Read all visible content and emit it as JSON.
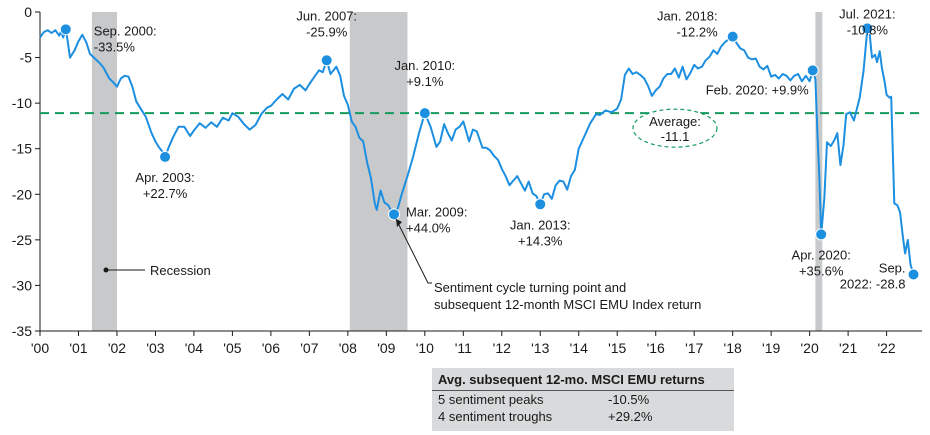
{
  "chart_data": {
    "type": "line",
    "colors": {
      "line": "#1d8fe1",
      "average": "#159a5e",
      "recession": "#c8c9cb",
      "axis": "#1a1a1a",
      "stats_bg": "#d9dadb"
    },
    "ylim": [
      -35,
      0
    ],
    "yticks": [
      0,
      -5,
      -10,
      -15,
      -20,
      -25,
      -30,
      -35
    ],
    "xlim": [
      2000,
      2022.92
    ],
    "xticks": [
      {
        "x": 2000,
        "label": "'00"
      },
      {
        "x": 2001,
        "label": "'01"
      },
      {
        "x": 2002,
        "label": "'02"
      },
      {
        "x": 2003,
        "label": "'03"
      },
      {
        "x": 2004,
        "label": "'04"
      },
      {
        "x": 2005,
        "label": "'05"
      },
      {
        "x": 2006,
        "label": "'06"
      },
      {
        "x": 2007,
        "label": "'07"
      },
      {
        "x": 2008,
        "label": "'08"
      },
      {
        "x": 2009,
        "label": "'09"
      },
      {
        "x": 2010,
        "label": "'10"
      },
      {
        "x": 2011,
        "label": "'11"
      },
      {
        "x": 2012,
        "label": "'12"
      },
      {
        "x": 2013,
        "label": "'13"
      },
      {
        "x": 2014,
        "label": "'14"
      },
      {
        "x": 2015,
        "label": "'15"
      },
      {
        "x": 2016,
        "label": "'16"
      },
      {
        "x": 2017,
        "label": "'17"
      },
      {
        "x": 2018,
        "label": "'18"
      },
      {
        "x": 2019,
        "label": "'19"
      },
      {
        "x": 2020,
        "label": "'20"
      },
      {
        "x": 2021,
        "label": "'21"
      },
      {
        "x": 2022,
        "label": "'22"
      }
    ],
    "average": {
      "value": -11.1,
      "label_line1": "Average:",
      "label_line2": "-11.1"
    },
    "recessions": [
      [
        2001.35,
        2002.0
      ],
      [
        2008.05,
        2009.55
      ],
      [
        2020.15,
        2020.33
      ]
    ],
    "recession_label": "Recession",
    "series": [
      {
        "points": [
          [
            2000.0,
            -2.8
          ],
          [
            2000.1,
            -2.2
          ],
          [
            2000.2,
            -2.0
          ],
          [
            2000.3,
            -2.3
          ],
          [
            2000.4,
            -2.0
          ],
          [
            2000.5,
            -2.6
          ],
          [
            2000.55,
            -2.1
          ],
          [
            2000.6,
            -2.8
          ],
          [
            2000.67,
            -1.9
          ],
          [
            2000.72,
            -3.2
          ],
          [
            2000.78,
            -5.0
          ],
          [
            2000.9,
            -4.2
          ],
          [
            2001.0,
            -3.2
          ],
          [
            2001.1,
            -2.5
          ],
          [
            2001.2,
            -3.3
          ],
          [
            2001.3,
            -4.6
          ],
          [
            2001.4,
            -5.0
          ],
          [
            2001.55,
            -5.6
          ],
          [
            2001.65,
            -6.1
          ],
          [
            2001.8,
            -7.3
          ],
          [
            2001.9,
            -7.7
          ],
          [
            2002.0,
            -8.2
          ],
          [
            2002.1,
            -7.3
          ],
          [
            2002.2,
            -7.0
          ],
          [
            2002.3,
            -7.1
          ],
          [
            2002.4,
            -8.2
          ],
          [
            2002.5,
            -9.8
          ],
          [
            2002.6,
            -10.5
          ],
          [
            2002.75,
            -11.5
          ],
          [
            2002.9,
            -13.3
          ],
          [
            2003.0,
            -14.2
          ],
          [
            2003.1,
            -14.9
          ],
          [
            2003.2,
            -15.4
          ],
          [
            2003.25,
            -15.9
          ],
          [
            2003.35,
            -14.8
          ],
          [
            2003.45,
            -13.8
          ],
          [
            2003.6,
            -12.6
          ],
          [
            2003.75,
            -12.6
          ],
          [
            2003.9,
            -13.6
          ],
          [
            2004.0,
            -13.0
          ],
          [
            2004.15,
            -12.2
          ],
          [
            2004.3,
            -12.7
          ],
          [
            2004.45,
            -12.1
          ],
          [
            2004.6,
            -12.6
          ],
          [
            2004.75,
            -11.6
          ],
          [
            2004.9,
            -11.9
          ],
          [
            2005.0,
            -11.1
          ],
          [
            2005.15,
            -11.5
          ],
          [
            2005.3,
            -12.3
          ],
          [
            2005.45,
            -12.9
          ],
          [
            2005.6,
            -12.4
          ],
          [
            2005.75,
            -11.2
          ],
          [
            2005.9,
            -10.5
          ],
          [
            2006.0,
            -10.3
          ],
          [
            2006.15,
            -9.6
          ],
          [
            2006.3,
            -9.0
          ],
          [
            2006.45,
            -9.6
          ],
          [
            2006.6,
            -8.4
          ],
          [
            2006.75,
            -8.0
          ],
          [
            2006.9,
            -8.6
          ],
          [
            2007.0,
            -7.9
          ],
          [
            2007.15,
            -7.0
          ],
          [
            2007.25,
            -6.4
          ],
          [
            2007.35,
            -6.6
          ],
          [
            2007.45,
            -5.3
          ],
          [
            2007.55,
            -6.8
          ],
          [
            2007.7,
            -6.0
          ],
          [
            2007.8,
            -7.0
          ],
          [
            2007.9,
            -9.2
          ],
          [
            2008.0,
            -10.2
          ],
          [
            2008.1,
            -12.0
          ],
          [
            2008.2,
            -12.6
          ],
          [
            2008.3,
            -13.8
          ],
          [
            2008.4,
            -14.2
          ],
          [
            2008.5,
            -16.5
          ],
          [
            2008.6,
            -18.2
          ],
          [
            2008.7,
            -21.0
          ],
          [
            2008.75,
            -21.7
          ],
          [
            2008.85,
            -19.6
          ],
          [
            2008.95,
            -20.9
          ],
          [
            2009.05,
            -21.2
          ],
          [
            2009.15,
            -22.0
          ],
          [
            2009.2,
            -22.2
          ],
          [
            2009.3,
            -21.5
          ],
          [
            2009.4,
            -20.0
          ],
          [
            2009.55,
            -18.0
          ],
          [
            2009.7,
            -15.8
          ],
          [
            2009.85,
            -13.3
          ],
          [
            2010.0,
            -11.1
          ],
          [
            2010.15,
            -12.6
          ],
          [
            2010.3,
            -14.8
          ],
          [
            2010.4,
            -14.2
          ],
          [
            2010.5,
            -12.3
          ],
          [
            2010.6,
            -13.3
          ],
          [
            2010.7,
            -14.1
          ],
          [
            2010.8,
            -12.9
          ],
          [
            2010.9,
            -12.6
          ],
          [
            2011.0,
            -12.0
          ],
          [
            2011.15,
            -14.2
          ],
          [
            2011.25,
            -12.9
          ],
          [
            2011.35,
            -13.1
          ],
          [
            2011.5,
            -14.9
          ],
          [
            2011.6,
            -14.9
          ],
          [
            2011.7,
            -15.2
          ],
          [
            2011.8,
            -15.8
          ],
          [
            2011.9,
            -16.2
          ],
          [
            2012.0,
            -17.2
          ],
          [
            2012.1,
            -18.0
          ],
          [
            2012.2,
            -19.0
          ],
          [
            2012.3,
            -18.5
          ],
          [
            2012.4,
            -18.0
          ],
          [
            2012.5,
            -18.8
          ],
          [
            2012.6,
            -19.6
          ],
          [
            2012.7,
            -18.6
          ],
          [
            2012.8,
            -19.9
          ],
          [
            2012.9,
            -20.2
          ],
          [
            2013.0,
            -21.1
          ],
          [
            2013.1,
            -20.0
          ],
          [
            2013.2,
            -19.9
          ],
          [
            2013.3,
            -20.5
          ],
          [
            2013.4,
            -19.0
          ],
          [
            2013.5,
            -18.5
          ],
          [
            2013.6,
            -18.6
          ],
          [
            2013.7,
            -19.5
          ],
          [
            2013.8,
            -18.0
          ],
          [
            2013.9,
            -17.3
          ],
          [
            2014.0,
            -15.0
          ],
          [
            2014.15,
            -13.6
          ],
          [
            2014.3,
            -12.2
          ],
          [
            2014.45,
            -11.2
          ],
          [
            2014.55,
            -11.3
          ],
          [
            2014.7,
            -10.8
          ],
          [
            2014.85,
            -11.0
          ],
          [
            2015.0,
            -10.6
          ],
          [
            2015.1,
            -9.6
          ],
          [
            2015.2,
            -6.9
          ],
          [
            2015.3,
            -6.2
          ],
          [
            2015.4,
            -6.8
          ],
          [
            2015.5,
            -6.6
          ],
          [
            2015.6,
            -6.9
          ],
          [
            2015.7,
            -7.3
          ],
          [
            2015.8,
            -8.1
          ],
          [
            2015.9,
            -9.2
          ],
          [
            2016.0,
            -8.6
          ],
          [
            2016.1,
            -8.2
          ],
          [
            2016.2,
            -7.3
          ],
          [
            2016.3,
            -6.8
          ],
          [
            2016.4,
            -6.8
          ],
          [
            2016.5,
            -6.2
          ],
          [
            2016.6,
            -7.2
          ],
          [
            2016.7,
            -6.0
          ],
          [
            2016.8,
            -7.4
          ],
          [
            2016.9,
            -6.7
          ],
          [
            2017.0,
            -5.8
          ],
          [
            2017.1,
            -6.2
          ],
          [
            2017.2,
            -6.0
          ],
          [
            2017.3,
            -5.3
          ],
          [
            2017.4,
            -4.9
          ],
          [
            2017.5,
            -4.2
          ],
          [
            2017.6,
            -4.6
          ],
          [
            2017.7,
            -3.8
          ],
          [
            2017.8,
            -3.3
          ],
          [
            2017.9,
            -3.0
          ],
          [
            2018.0,
            -2.7
          ],
          [
            2018.1,
            -3.4
          ],
          [
            2018.2,
            -4.0
          ],
          [
            2018.3,
            -4.2
          ],
          [
            2018.4,
            -5.0
          ],
          [
            2018.5,
            -5.2
          ],
          [
            2018.6,
            -5.1
          ],
          [
            2018.7,
            -6.0
          ],
          [
            2018.8,
            -6.3
          ],
          [
            2018.9,
            -5.9
          ],
          [
            2019.0,
            -7.1
          ],
          [
            2019.1,
            -6.9
          ],
          [
            2019.2,
            -7.3
          ],
          [
            2019.3,
            -6.8
          ],
          [
            2019.4,
            -7.0
          ],
          [
            2019.5,
            -7.5
          ],
          [
            2019.6,
            -7.0
          ],
          [
            2019.7,
            -6.8
          ],
          [
            2019.8,
            -7.6
          ],
          [
            2019.9,
            -7.0
          ],
          [
            2020.0,
            -7.6
          ],
          [
            2020.08,
            -6.4
          ],
          [
            2020.15,
            -7.4
          ],
          [
            2020.2,
            -13.0
          ],
          [
            2020.25,
            -18.0
          ],
          [
            2020.3,
            -24.4
          ],
          [
            2020.38,
            -20.5
          ],
          [
            2020.45,
            -14.3
          ],
          [
            2020.55,
            -14.7
          ],
          [
            2020.65,
            -14.0
          ],
          [
            2020.72,
            -13.3
          ],
          [
            2020.8,
            -16.8
          ],
          [
            2020.88,
            -14.6
          ],
          [
            2020.95,
            -11.2
          ],
          [
            2021.05,
            -11.0
          ],
          [
            2021.15,
            -11.9
          ],
          [
            2021.3,
            -9.4
          ],
          [
            2021.4,
            -6.5
          ],
          [
            2021.5,
            -1.8
          ],
          [
            2021.55,
            -2.0
          ],
          [
            2021.62,
            -5.0
          ],
          [
            2021.7,
            -4.7
          ],
          [
            2021.75,
            -5.5
          ],
          [
            2021.82,
            -4.3
          ],
          [
            2021.88,
            -6.2
          ],
          [
            2021.95,
            -7.7
          ],
          [
            2022.0,
            -9.1
          ],
          [
            2022.08,
            -9.4
          ],
          [
            2022.12,
            -9.3
          ],
          [
            2022.2,
            -21.0
          ],
          [
            2022.28,
            -21.2
          ],
          [
            2022.35,
            -22.0
          ],
          [
            2022.42,
            -24.6
          ],
          [
            2022.48,
            -26.5
          ],
          [
            2022.55,
            -25.0
          ],
          [
            2022.62,
            -27.7
          ],
          [
            2022.7,
            -28.8
          ]
        ]
      }
    ],
    "annotations": [
      {
        "x": 2000.67,
        "y": -1.9,
        "line1": "Sep. 2000:",
        "line2": "-33.5%"
      },
      {
        "x": 2003.25,
        "y": -15.9,
        "line1": "Apr. 2003:",
        "line2": "+22.7%"
      },
      {
        "x": 2007.45,
        "y": -5.3,
        "line1": "Jun. 2007:",
        "line2": "-25.9%"
      },
      {
        "x": 2009.2,
        "y": -22.2,
        "line1": "Mar. 2009:",
        "line2": "+44.0%"
      },
      {
        "x": 2010.0,
        "y": -11.1,
        "line1": "Jan. 2010:",
        "line2": "+9.1%"
      },
      {
        "x": 2013.0,
        "y": -21.1,
        "line1": "Jan. 2013:",
        "line2": "+14.3%"
      },
      {
        "x": 2018.0,
        "y": -2.7,
        "line1": "Jan. 2018:",
        "line2": "-12.2%"
      },
      {
        "x": 2020.08,
        "y": -6.4,
        "line1": "Feb. 2020: +9.9%",
        "line2": ""
      },
      {
        "x": 2020.3,
        "y": -24.4,
        "line1": "Apr. 2020:",
        "line2": "+35.6%"
      },
      {
        "x": 2021.5,
        "y": -1.8,
        "line1": "Jul. 2021:",
        "line2": "-10.8%"
      },
      {
        "x": 2022.7,
        "y": -28.8,
        "line1": "Sep.",
        "line2": "2022: -28.8"
      }
    ],
    "callout": {
      "line1": "Sentiment cycle turning point and",
      "line2": "subsequent 12-month MSCI EMU Index return"
    }
  },
  "stats_table": {
    "title": "Avg. subsequent 12-mo. MSCI EMU returns",
    "rows": [
      {
        "label": "5 sentiment peaks",
        "value": "-10.5%"
      },
      {
        "label": "4 sentiment troughs",
        "value": "+29.2%"
      }
    ]
  }
}
